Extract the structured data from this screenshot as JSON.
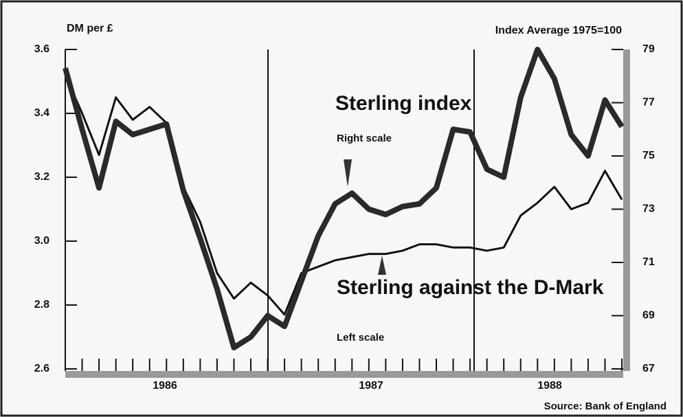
{
  "chart_data": {
    "type": "line",
    "y_label": "DM per £",
    "y2_label": "Index Average 1975=100",
    "source": "Source: Bank of England",
    "categories": [
      null,
      null,
      null,
      null,
      null,
      null,
      null,
      null,
      null,
      null,
      null,
      null,
      null,
      null,
      null,
      null,
      null,
      null,
      null,
      null,
      null,
      null,
      null,
      null,
      null,
      null,
      null,
      null,
      null,
      null,
      null,
      null,
      null,
      null
    ],
    "years": [
      "1986",
      "1987",
      "1988"
    ],
    "series": [
      {
        "name": "Sterling against the D-Mark",
        "note": "Left scale",
        "color": "#111111",
        "axis": "y",
        "values": [
          3.52,
          3.4,
          3.27,
          3.45,
          3.38,
          3.42,
          3.37,
          3.17,
          3.06,
          2.9,
          2.82,
          2.87,
          2.83,
          2.77,
          2.9,
          2.92,
          2.94,
          2.95,
          2.96,
          2.96,
          2.97,
          2.99,
          2.99,
          2.98,
          2.98,
          2.97,
          2.98,
          3.08,
          3.12,
          3.17,
          3.1,
          3.12,
          3.22,
          3.13
        ]
      },
      {
        "name": "Sterling index",
        "note": "Right scale",
        "color": "#2a2a2a",
        "axis": "y2",
        "values": [
          78.3,
          76,
          73.8,
          76.3,
          75.8,
          76,
          76.2,
          73.7,
          71.9,
          70,
          67.8,
          68.2,
          69,
          68.6,
          70.3,
          72,
          73.2,
          73.6,
          73,
          72.8,
          73.1,
          73.2,
          73.8,
          76,
          75.9,
          74.5,
          74.2,
          77.2,
          79,
          77.9,
          75.8,
          75,
          77.1,
          76.1
        ]
      }
    ],
    "ylim": [
      2.6,
      3.6
    ],
    "yticks": [
      2.6,
      2.8,
      {
        "value": 3.0,
        "label": "3.0"
      },
      3.2,
      3.4,
      3.6
    ],
    "y2lim": [
      67,
      79
    ],
    "y2ticks": [
      67,
      69,
      71,
      73,
      75,
      77,
      79
    ]
  }
}
